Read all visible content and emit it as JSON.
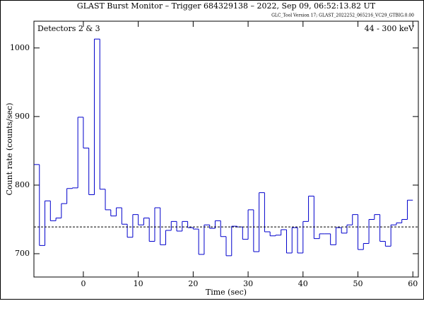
{
  "chart_data": {
    "type": "histogram",
    "title": "GLAST Burst Monitor  –  Trigger 684329138  –  2022, Sep 09, 06:52:13.82 UT",
    "subtitle": "GLC_Tool Version 17; GLAST_2022252_065216_VC29_GTBIG.0.00",
    "annotations": [
      "Detectors 2 & 3",
      "44 - 300 keV"
    ],
    "xlabel": "Time (sec)",
    "ylabel": "Count rate (counts/sec)",
    "bins": [
      -9,
      -8,
      -7,
      -6,
      -5,
      -4,
      -3,
      -2,
      -1,
      0,
      1,
      2,
      3,
      4,
      5,
      6,
      7,
      8,
      9,
      10,
      11,
      12,
      13,
      14,
      15,
      16,
      17,
      18,
      19,
      20,
      21,
      22,
      23,
      24,
      25,
      26,
      27,
      28,
      29,
      30,
      31,
      32,
      33,
      34,
      35,
      36,
      37,
      38,
      39,
      40,
      41,
      42,
      43,
      44,
      45,
      46,
      47,
      48,
      49,
      50,
      51,
      52,
      53,
      54,
      55,
      56,
      57,
      58,
      59,
      60
    ],
    "values": [
      830,
      712,
      777,
      748,
      752,
      773,
      795,
      796,
      899,
      854,
      786,
      1013,
      794,
      764,
      755,
      767,
      743,
      724,
      757,
      742,
      752,
      718,
      767,
      713,
      734,
      747,
      733,
      747,
      738,
      736,
      699,
      742,
      737,
      748,
      725,
      697,
      740,
      739,
      721,
      764,
      703,
      789,
      732,
      726,
      727,
      735,
      701,
      738,
      701,
      747,
      784,
      722,
      729,
      729,
      713,
      738,
      730,
      742,
      757,
      706,
      715,
      750,
      757,
      718,
      711,
      742,
      745,
      750,
      778
    ],
    "background_level": 739,
    "color": "#0000cc",
    "xlim": [
      -9,
      61
    ],
    "ylim": [
      666,
      1039
    ],
    "xticks": [
      0,
      10,
      20,
      30,
      40,
      50,
      60
    ],
    "yticks": [
      700,
      800,
      900,
      1000
    ]
  }
}
